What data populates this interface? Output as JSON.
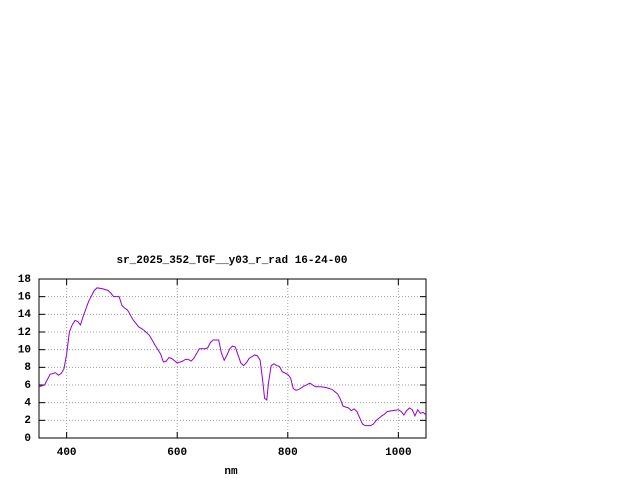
{
  "chart_data": {
    "type": "line",
    "title": "sr_2025_352_TGF__y03_r_rad 16-24-00",
    "x_label": "nm",
    "x": [
      350,
      360,
      370,
      380,
      385,
      390,
      395,
      400,
      405,
      410,
      415,
      420,
      425,
      430,
      440,
      450,
      455,
      465,
      475,
      480,
      485,
      495,
      500,
      505,
      510,
      520,
      530,
      540,
      550,
      560,
      570,
      575,
      580,
      585,
      590,
      600,
      610,
      615,
      620,
      625,
      630,
      640,
      650,
      655,
      660,
      665,
      675,
      680,
      685,
      690,
      695,
      700,
      705,
      710,
      715,
      720,
      725,
      730,
      740,
      745,
      750,
      755,
      758,
      762,
      765,
      770,
      775,
      780,
      785,
      790,
      800,
      805,
      810,
      815,
      820,
      830,
      840,
      850,
      860,
      870,
      880,
      890,
      895,
      900,
      910,
      915,
      920,
      925,
      930,
      935,
      940,
      950,
      955,
      960,
      970,
      975,
      980,
      990,
      1000,
      1005,
      1010,
      1015,
      1020,
      1025,
      1030,
      1035,
      1040,
      1045,
      1050
    ],
    "values": [
      5.8,
      6.0,
      7.2,
      7.4,
      7.1,
      7.3,
      7.8,
      9.5,
      12.0,
      12.8,
      13.3,
      13.2,
      12.8,
      13.8,
      15.5,
      16.7,
      17.0,
      16.9,
      16.7,
      16.4,
      16.0,
      16.0,
      15.0,
      14.7,
      14.5,
      13.4,
      12.6,
      12.2,
      11.6,
      10.5,
      9.5,
      8.6,
      8.7,
      9.1,
      9.0,
      8.5,
      8.7,
      8.9,
      8.9,
      8.7,
      9.0,
      10.1,
      10.1,
      10.2,
      10.8,
      11.1,
      11.1,
      9.6,
      8.8,
      9.4,
      10.1,
      10.4,
      10.3,
      9.4,
      8.5,
      8.2,
      8.5,
      9.0,
      9.4,
      9.3,
      8.8,
      6.3,
      4.5,
      4.3,
      6.2,
      8.2,
      8.4,
      8.2,
      8.1,
      7.5,
      7.2,
      6.8,
      5.6,
      5.4,
      5.5,
      5.9,
      6.2,
      5.8,
      5.8,
      5.7,
      5.5,
      5.0,
      4.4,
      3.6,
      3.4,
      3.1,
      3.3,
      3.0,
      2.3,
      1.6,
      1.4,
      1.4,
      1.6,
      2.0,
      2.5,
      2.7,
      3.0,
      3.1,
      3.2,
      3.0,
      2.6,
      3.1,
      3.4,
      3.2,
      2.5,
      3.2,
      2.8,
      2.9,
      2.6
    ],
    "color": "#9400d3",
    "xlim": [
      350,
      1050
    ],
    "xticks": [
      400,
      600,
      800,
      1000
    ],
    "ylim": [
      0,
      18
    ],
    "yticks": [
      0,
      2,
      4,
      6,
      8,
      10,
      12,
      14,
      16,
      18
    ],
    "grid": true
  }
}
